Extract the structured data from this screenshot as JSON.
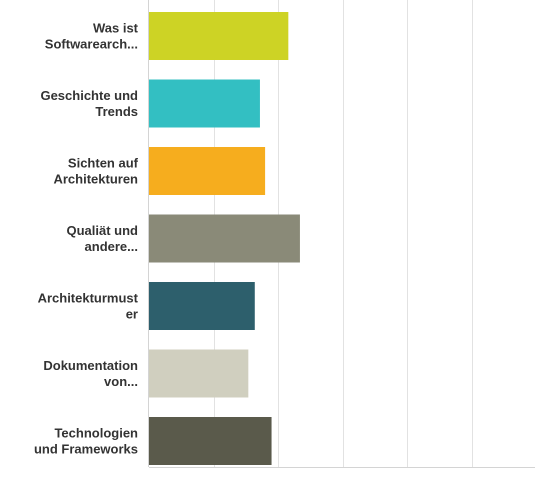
{
  "chart_data": {
    "type": "bar",
    "orientation": "horizontal",
    "categories": [
      [
        "Was ist",
        "Softwarearch..."
      ],
      [
        "Geschichte und",
        "Trends"
      ],
      [
        "Sichten auf",
        "Architekturen"
      ],
      [
        "Qualiät und",
        "andere..."
      ],
      [
        "Architekturmust",
        "er"
      ],
      [
        "Dokumentation",
        "von..."
      ],
      [
        "Technologien",
        "und Frameworks"
      ]
    ],
    "values": [
      1.08,
      0.86,
      0.9,
      1.17,
      0.82,
      0.77,
      0.95
    ],
    "colors": [
      "#cdd325",
      "#33bfc2",
      "#f6ad1e",
      "#8a8a78",
      "#2d5f6c",
      "#d0cfbf",
      "#5a5a4b"
    ],
    "xlim": [
      0,
      3
    ],
    "grid": true,
    "title": "",
    "xlabel": "",
    "ylabel": ""
  }
}
